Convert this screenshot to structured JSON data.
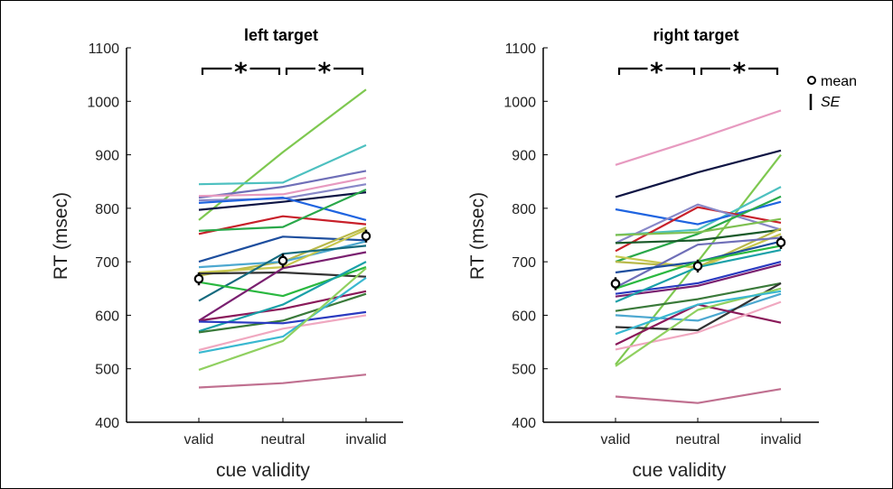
{
  "legend": {
    "mean_label": "mean",
    "se_label": "SE"
  },
  "chart_data": [
    {
      "type": "line",
      "title": "left target",
      "xlabel": "cue validity",
      "ylabel": "RT (msec)",
      "categories": [
        "valid",
        "neutral",
        "invalid"
      ],
      "ylim": [
        400,
        1100
      ],
      "yticks": [
        "400",
        "500",
        "600",
        "700",
        "800",
        "900",
        "1000",
        "1100"
      ],
      "significance": [
        "*",
        "*"
      ],
      "mean": [
        668,
        702,
        748
      ],
      "se": [
        12,
        13,
        12
      ],
      "series": [
        {
          "color": "#7ec850",
          "values": [
            778,
            905,
            1022
          ]
        },
        {
          "color": "#4dc0c0",
          "values": [
            845,
            848,
            918
          ]
        },
        {
          "color": "#6f6fb8",
          "values": [
            820,
            840,
            870
          ]
        },
        {
          "color": "#e79ac0",
          "values": [
            823,
            826,
            857
          ]
        },
        {
          "color": "#8888c8",
          "values": [
            815,
            818,
            845
          ]
        },
        {
          "color": "#0f1544",
          "values": [
            797,
            812,
            830
          ]
        },
        {
          "color": "#1f64e0",
          "values": [
            810,
            820,
            778
          ]
        },
        {
          "color": "#c8202a",
          "values": [
            752,
            785,
            770
          ]
        },
        {
          "color": "#2aa84a",
          "values": [
            758,
            765,
            835
          ]
        },
        {
          "color": "#1d4e9e",
          "values": [
            700,
            747,
            740
          ]
        },
        {
          "color": "#b9b94a",
          "values": [
            674,
            700,
            764
          ]
        },
        {
          "color": "#4da8d0",
          "values": [
            690,
            700,
            738
          ]
        },
        {
          "color": "#c8c850",
          "values": [
            680,
            690,
            760
          ]
        },
        {
          "color": "#333333",
          "values": [
            678,
            680,
            672
          ]
        },
        {
          "color": "#156a7e",
          "values": [
            627,
            715,
            730
          ]
        },
        {
          "color": "#2ab840",
          "values": [
            662,
            636,
            690
          ]
        },
        {
          "color": "#7a2070",
          "values": [
            590,
            688,
            718
          ]
        },
        {
          "color": "#8a1a5a",
          "values": [
            590,
            612,
            645
          ]
        },
        {
          "color": "#1aa0a8",
          "values": [
            570,
            620,
            700
          ]
        },
        {
          "color": "#3a7a3a",
          "values": [
            568,
            590,
            640
          ]
        },
        {
          "color": "#2a3ac0",
          "values": [
            588,
            585,
            606
          ]
        },
        {
          "color": "#f0a8c0",
          "values": [
            535,
            575,
            600
          ]
        },
        {
          "color": "#3ab8d0",
          "values": [
            530,
            560,
            670
          ]
        },
        {
          "color": "#90d060",
          "values": [
            498,
            552,
            688
          ]
        },
        {
          "color": "#c07090",
          "values": [
            465,
            473,
            489
          ]
        }
      ]
    },
    {
      "type": "line",
      "title": "right target",
      "xlabel": "cue validity",
      "ylabel": "RT (msec)",
      "categories": [
        "valid",
        "neutral",
        "invalid"
      ],
      "ylim": [
        400,
        1100
      ],
      "yticks": [
        "400",
        "500",
        "600",
        "700",
        "800",
        "900",
        "1000",
        "1100"
      ],
      "significance": [
        "*",
        "*"
      ],
      "mean": [
        659,
        692,
        736
      ],
      "se": [
        12,
        12,
        12
      ],
      "series": [
        {
          "color": "#e79ac0",
          "values": [
            881,
            930,
            983
          ]
        },
        {
          "color": "#0f1544",
          "values": [
            821,
            867,
            908
          ]
        },
        {
          "color": "#7ec850",
          "values": [
            508,
            700,
            900
          ]
        },
        {
          "color": "#4dc0c0",
          "values": [
            750,
            760,
            840
          ]
        },
        {
          "color": "#1f64e0",
          "values": [
            798,
            770,
            812
          ]
        },
        {
          "color": "#c8202a",
          "values": [
            720,
            802,
            773
          ]
        },
        {
          "color": "#8888c8",
          "values": [
            735,
            807,
            760
          ]
        },
        {
          "color": "#2aa84a",
          "values": [
            700,
            752,
            822
          ]
        },
        {
          "color": "#7ec050",
          "values": [
            750,
            755,
            780
          ]
        },
        {
          "color": "#1a5a2a",
          "values": [
            735,
            740,
            760
          ]
        },
        {
          "color": "#b9b94a",
          "values": [
            700,
            690,
            762
          ]
        },
        {
          "color": "#c8c850",
          "values": [
            710,
            688,
            752
          ]
        },
        {
          "color": "#6f6fb8",
          "values": [
            652,
            732,
            745
          ]
        },
        {
          "color": "#1d4e9e",
          "values": [
            680,
            700,
            738
          ]
        },
        {
          "color": "#2a3ac0",
          "values": [
            640,
            660,
            700
          ]
        },
        {
          "color": "#7a2070",
          "values": [
            635,
            655,
            695
          ]
        },
        {
          "color": "#1aa0a8",
          "values": [
            625,
            690,
            722
          ]
        },
        {
          "color": "#2ab840",
          "values": [
            650,
            700,
            730
          ]
        },
        {
          "color": "#3a7a3a",
          "values": [
            608,
            630,
            660
          ]
        },
        {
          "color": "#4da8d0",
          "values": [
            600,
            590,
            640
          ]
        },
        {
          "color": "#333333",
          "values": [
            578,
            572,
            660
          ]
        },
        {
          "color": "#8a1a5a",
          "values": [
            545,
            620,
            586
          ]
        },
        {
          "color": "#f0a8c0",
          "values": [
            536,
            568,
            625
          ]
        },
        {
          "color": "#90d060",
          "values": [
            505,
            610,
            650
          ]
        },
        {
          "color": "#3ab8d0",
          "values": [
            565,
            620,
            645
          ]
        },
        {
          "color": "#c07090",
          "values": [
            448,
            436,
            462
          ]
        }
      ]
    }
  ]
}
